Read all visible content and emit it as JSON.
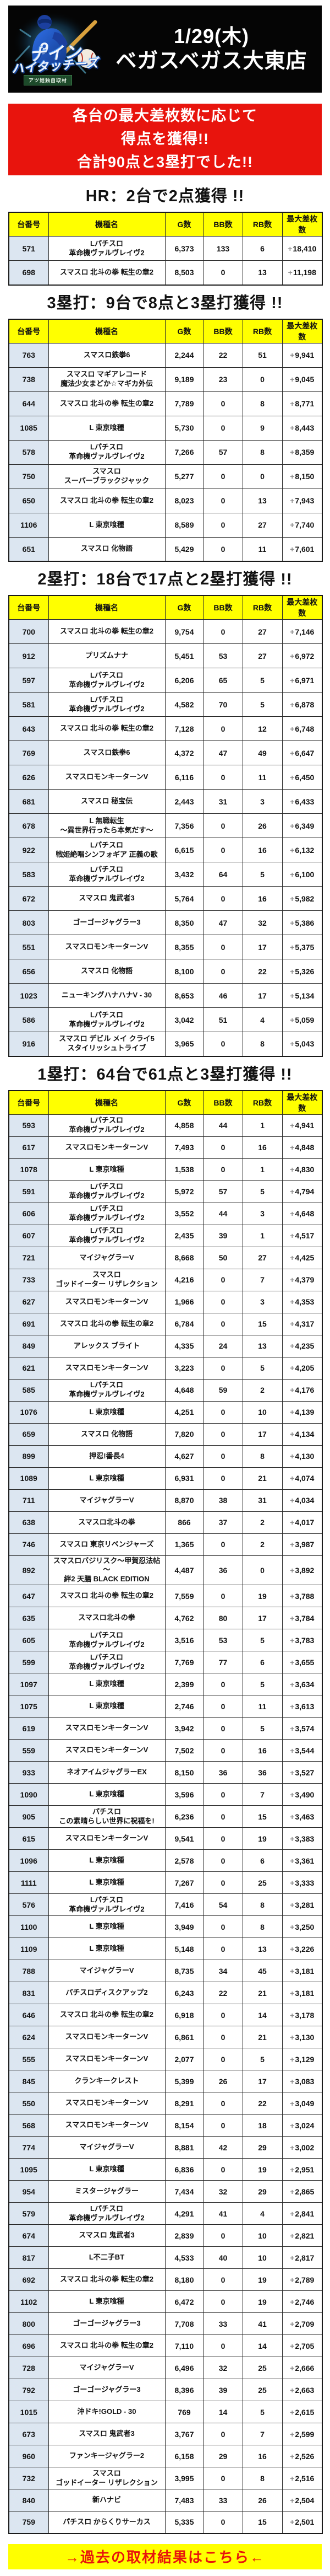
{
  "header": {
    "date": "1/29(木)",
    "store": "ベガスベガス大東店",
    "logo": {
      "line1": "ナイン",
      "line2": "ハイタッチーズ",
      "sub": "アツ姫独自取材",
      "jersey_number": "9"
    }
  },
  "banner": {
    "lines": [
      "各台の最大差枚数に応じて",
      "得点を獲得!!",
      "合計90点と3塁打でした!!"
    ]
  },
  "columns": [
    "台番号",
    "機種名",
    "G数",
    "BB数",
    "RB数",
    "最大差枚数"
  ],
  "sections": [
    {
      "title": "HR：2台で2点獲得 !!",
      "rows": [
        [
          "571",
          "Lパチスロ\n革命機ヴァルヴレイヴ2",
          "6,373",
          "133",
          "6",
          "+18,410"
        ],
        [
          "698",
          "スマスロ 北斗の拳 転生の章2",
          "8,503",
          "0",
          "13",
          "+11,198"
        ]
      ]
    },
    {
      "title": "3塁打：9台で8点と3塁打獲得 !!",
      "rows": [
        [
          "763",
          "スマスロ鉄拳6",
          "2,244",
          "22",
          "51",
          "+9,941"
        ],
        [
          "738",
          "スマスロ マギアレコード\n魔法少女まどか☆マギカ外伝",
          "9,189",
          "23",
          "0",
          "+9,045"
        ],
        [
          "644",
          "スマスロ 北斗の拳 転生の章2",
          "7,789",
          "0",
          "8",
          "+8,771"
        ],
        [
          "1085",
          "L 東京喰種",
          "5,730",
          "0",
          "9",
          "+8,443"
        ],
        [
          "578",
          "Lパチスロ\n革命機ヴァルヴレイヴ2",
          "7,266",
          "57",
          "8",
          "+8,359"
        ],
        [
          "750",
          "スマスロ\nスーパーブラックジャック",
          "5,277",
          "0",
          "0",
          "+8,150"
        ],
        [
          "650",
          "スマスロ 北斗の拳 転生の章2",
          "8,023",
          "0",
          "13",
          "+7,943"
        ],
        [
          "1106",
          "L 東京喰種",
          "8,589",
          "0",
          "27",
          "+7,740"
        ],
        [
          "651",
          "スマスロ 化物語",
          "5,429",
          "0",
          "11",
          "+7,601"
        ]
      ]
    },
    {
      "title": "2塁打：18台で17点と2塁打獲得 !!",
      "rows": [
        [
          "700",
          "スマスロ 北斗の拳 転生の章2",
          "9,754",
          "0",
          "27",
          "+7,146"
        ],
        [
          "912",
          "プリズムナナ",
          "5,451",
          "53",
          "27",
          "+6,972"
        ],
        [
          "597",
          "Lパチスロ\n革命機ヴァルヴレイヴ2",
          "6,206",
          "65",
          "5",
          "+6,971"
        ],
        [
          "581",
          "Lパチスロ\n革命機ヴァルヴレイヴ2",
          "4,582",
          "70",
          "5",
          "+6,878"
        ],
        [
          "643",
          "スマスロ 北斗の拳 転生の章2",
          "7,128",
          "0",
          "12",
          "+6,748"
        ],
        [
          "769",
          "スマスロ鉄拳6",
          "4,372",
          "47",
          "49",
          "+6,647"
        ],
        [
          "626",
          "スマスロモンキーターンV",
          "6,116",
          "0",
          "11",
          "+6,450"
        ],
        [
          "681",
          "スマスロ 秘宝伝",
          "2,443",
          "31",
          "3",
          "+6,433"
        ],
        [
          "678",
          "L 無職転生\n～異世界行ったら本気だす～",
          "7,356",
          "0",
          "26",
          "+6,349"
        ],
        [
          "922",
          "Lパチスロ\n戦姫絶唱シンフォギア 正義の歌",
          "6,615",
          "0",
          "16",
          "+6,132"
        ],
        [
          "583",
          "Lパチスロ\n革命機ヴァルヴレイヴ2",
          "3,432",
          "64",
          "5",
          "+6,100"
        ],
        [
          "672",
          "スマスロ 鬼武者3",
          "5,764",
          "0",
          "16",
          "+5,982"
        ],
        [
          "803",
          "ゴーゴージャグラー3",
          "8,350",
          "47",
          "32",
          "+5,386"
        ],
        [
          "551",
          "スマスロモンキーターンV",
          "8,355",
          "0",
          "17",
          "+5,375"
        ],
        [
          "656",
          "スマスロ 化物語",
          "8,100",
          "0",
          "22",
          "+5,326"
        ],
        [
          "1023",
          "ニューキングハナハナV - 30",
          "8,653",
          "46",
          "17",
          "+5,134"
        ],
        [
          "586",
          "Lパチスロ\n革命機ヴァルヴレイヴ2",
          "3,042",
          "51",
          "4",
          "+5,059"
        ],
        [
          "916",
          "スマスロ デビル メイ クライ5\nスタイリッシュトライブ",
          "3,965",
          "0",
          "8",
          "+5,043"
        ]
      ]
    },
    {
      "title": "1塁打：64台で61点と3塁打獲得 !!",
      "rows": [
        [
          "593",
          "Lパチスロ\n革命機ヴァルヴレイヴ2",
          "4,858",
          "44",
          "1",
          "+4,941"
        ],
        [
          "617",
          "スマスロモンキーターンV",
          "7,493",
          "0",
          "16",
          "+4,848"
        ],
        [
          "1078",
          "L 東京喰種",
          "1,538",
          "0",
          "1",
          "+4,830"
        ],
        [
          "591",
          "Lパチスロ\n革命機ヴァルヴレイヴ2",
          "5,972",
          "57",
          "5",
          "+4,794"
        ],
        [
          "606",
          "Lパチスロ\n革命機ヴァルヴレイヴ2",
          "3,552",
          "44",
          "3",
          "+4,648"
        ],
        [
          "607",
          "Lパチスロ\n革命機ヴァルヴレイヴ2",
          "2,435",
          "39",
          "1",
          "+4,517"
        ],
        [
          "721",
          "マイジャグラーV",
          "8,668",
          "50",
          "27",
          "+4,425"
        ],
        [
          "733",
          "スマスロ\nゴッドイーター リザレクション",
          "4,216",
          "0",
          "7",
          "+4,379"
        ],
        [
          "627",
          "スマスロモンキーターンV",
          "1,966",
          "0",
          "3",
          "+4,353"
        ],
        [
          "691",
          "スマスロ 北斗の拳 転生の章2",
          "6,784",
          "0",
          "15",
          "+4,317"
        ],
        [
          "849",
          "アレックス ブライト",
          "4,335",
          "24",
          "13",
          "+4,235"
        ],
        [
          "621",
          "スマスロモンキーターンV",
          "3,223",
          "0",
          "5",
          "+4,205"
        ],
        [
          "585",
          "Lパチスロ\n革命機ヴァルヴレイヴ2",
          "4,648",
          "59",
          "2",
          "+4,176"
        ],
        [
          "1076",
          "L 東京喰種",
          "4,251",
          "0",
          "10",
          "+4,139"
        ],
        [
          "659",
          "スマスロ 化物語",
          "7,820",
          "0",
          "17",
          "+4,134"
        ],
        [
          "899",
          "押忍!番長4",
          "4,627",
          "0",
          "8",
          "+4,130"
        ],
        [
          "1089",
          "L 東京喰種",
          "6,931",
          "0",
          "21",
          "+4,074"
        ],
        [
          "711",
          "マイジャグラーV",
          "8,870",
          "38",
          "31",
          "+4,034"
        ],
        [
          "638",
          "スマスロ北斗の拳",
          "866",
          "37",
          "2",
          "+4,017"
        ],
        [
          "746",
          "スマスロ 東京リベンジャーズ",
          "1,365",
          "0",
          "2",
          "+3,987"
        ],
        [
          "892",
          "スマスロバジリスク～甲賀忍法帖～\n絆2 天膳 BLACK EDITION",
          "4,487",
          "36",
          "0",
          "+3,892"
        ],
        [
          "647",
          "スマスロ 北斗の拳 転生の章2",
          "7,559",
          "0",
          "19",
          "+3,788"
        ],
        [
          "635",
          "スマスロ北斗の拳",
          "4,762",
          "80",
          "17",
          "+3,784"
        ],
        [
          "605",
          "Lパチスロ\n革命機ヴァルヴレイヴ2",
          "3,516",
          "53",
          "5",
          "+3,783"
        ],
        [
          "599",
          "Lパチスロ\n革命機ヴァルヴレイヴ2",
          "7,769",
          "77",
          "6",
          "+3,655"
        ],
        [
          "1097",
          "L 東京喰種",
          "2,399",
          "0",
          "5",
          "+3,634"
        ],
        [
          "1075",
          "L 東京喰種",
          "2,746",
          "0",
          "11",
          "+3,613"
        ],
        [
          "619",
          "スマスロモンキーターンV",
          "3,942",
          "0",
          "5",
          "+3,574"
        ],
        [
          "559",
          "スマスロモンキーターンV",
          "7,502",
          "0",
          "16",
          "+3,544"
        ],
        [
          "933",
          "ネオアイムジャグラーEX",
          "8,150",
          "36",
          "36",
          "+3,527"
        ],
        [
          "1090",
          "L 東京喰種",
          "3,596",
          "0",
          "7",
          "+3,490"
        ],
        [
          "905",
          "パチスロ\nこの素晴らしい世界に祝福を!",
          "6,236",
          "0",
          "15",
          "+3,463"
        ],
        [
          "615",
          "スマスロモンキーターンV",
          "9,541",
          "0",
          "19",
          "+3,383"
        ],
        [
          "1096",
          "L 東京喰種",
          "2,578",
          "0",
          "6",
          "+3,361"
        ],
        [
          "1111",
          "L 東京喰種",
          "7,267",
          "0",
          "25",
          "+3,333"
        ],
        [
          "576",
          "Lパチスロ\n革命機ヴァルヴレイヴ2",
          "7,416",
          "54",
          "8",
          "+3,281"
        ],
        [
          "1100",
          "L 東京喰種",
          "3,949",
          "0",
          "8",
          "+3,250"
        ],
        [
          "1109",
          "L 東京喰種",
          "5,148",
          "0",
          "13",
          "+3,226"
        ],
        [
          "788",
          "マイジャグラーV",
          "8,735",
          "34",
          "45",
          "+3,181"
        ],
        [
          "831",
          "パチスロディスクアップ2",
          "6,243",
          "22",
          "21",
          "+3,181"
        ],
        [
          "646",
          "スマスロ 北斗の拳 転生の章2",
          "6,918",
          "0",
          "14",
          "+3,178"
        ],
        [
          "624",
          "スマスロモンキーターンV",
          "6,861",
          "0",
          "21",
          "+3,130"
        ],
        [
          "555",
          "スマスロモンキーターンV",
          "2,077",
          "0",
          "5",
          "+3,129"
        ],
        [
          "845",
          "クランキークレスト",
          "5,399",
          "26",
          "17",
          "+3,083"
        ],
        [
          "550",
          "スマスロモンキーターンV",
          "8,291",
          "0",
          "22",
          "+3,049"
        ],
        [
          "568",
          "スマスロモンキーターンV",
          "8,154",
          "0",
          "18",
          "+3,024"
        ],
        [
          "774",
          "マイジャグラーV",
          "8,881",
          "42",
          "29",
          "+3,002"
        ],
        [
          "1095",
          "L 東京喰種",
          "6,836",
          "0",
          "19",
          "+2,951"
        ],
        [
          "954",
          "ミスタージャグラー",
          "7,434",
          "32",
          "29",
          "+2,865"
        ],
        [
          "579",
          "Lパチスロ\n革命機ヴァルヴレイヴ2",
          "4,291",
          "41",
          "4",
          "+2,841"
        ],
        [
          "674",
          "スマスロ 鬼武者3",
          "2,839",
          "0",
          "10",
          "+2,821"
        ],
        [
          "817",
          "L不二子BT",
          "4,533",
          "40",
          "10",
          "+2,817"
        ],
        [
          "692",
          "スマスロ 北斗の拳 転生の章2",
          "8,180",
          "0",
          "19",
          "+2,789"
        ],
        [
          "1102",
          "L 東京喰種",
          "6,472",
          "0",
          "19",
          "+2,746"
        ],
        [
          "800",
          "ゴーゴージャグラー3",
          "7,708",
          "33",
          "41",
          "+2,709"
        ],
        [
          "696",
          "スマスロ 北斗の拳 転生の章2",
          "7,110",
          "0",
          "14",
          "+2,705"
        ],
        [
          "728",
          "マイジャグラーV",
          "6,496",
          "32",
          "25",
          "+2,666"
        ],
        [
          "792",
          "ゴーゴージャグラー3",
          "8,396",
          "39",
          "25",
          "+2,663"
        ],
        [
          "1015",
          "沖ドキ!GOLD - 30",
          "769",
          "14",
          "5",
          "+2,615"
        ],
        [
          "673",
          "スマスロ 鬼武者3",
          "3,767",
          "0",
          "7",
          "+2,599"
        ],
        [
          "960",
          "ファンキージャグラー2",
          "6,158",
          "29",
          "16",
          "+2,526"
        ],
        [
          "732",
          "スマスロ\nゴッドイーター リザレクション",
          "3,995",
          "0",
          "8",
          "+2,516"
        ],
        [
          "840",
          "新ハナビ",
          "7,483",
          "33",
          "26",
          "+2,504"
        ],
        [
          "759",
          "パチスロ からくりサーカス",
          "5,335",
          "0",
          "15",
          "+2,501"
        ]
      ]
    }
  ],
  "footer": {
    "link": "→過去の取材結果はこちら←"
  },
  "colors": {
    "accent_red": "#e8140d",
    "table_header_yellow": "#ffff00",
    "number_col_blue": "#dce6f1",
    "banner_black": "#050505",
    "plus_grey": "#8b8b8b"
  }
}
